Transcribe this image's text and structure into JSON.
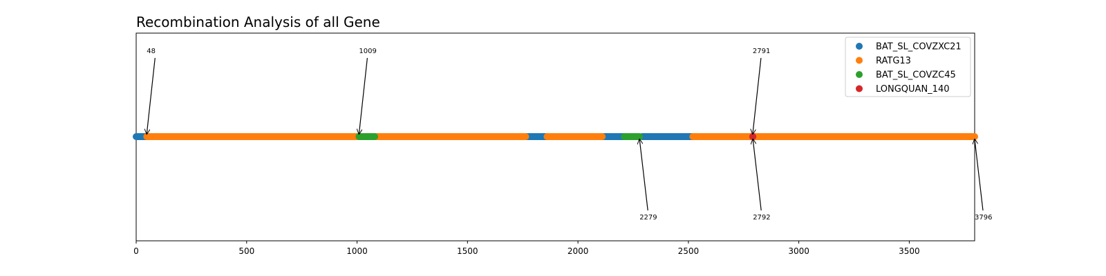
{
  "chart_data": {
    "type": "scatter",
    "title": "Recombination Analysis of all Gene",
    "xlabel": "",
    "ylabel": "",
    "xlim": [
      0,
      3796
    ],
    "xticks": [
      0,
      500,
      1000,
      1500,
      2000,
      2500,
      3000,
      3500
    ],
    "grid": false,
    "legend_placement": "top-right",
    "series": [
      {
        "name": "BAT_SL_COVZXC21",
        "color": "#1f77b4",
        "segments": [
          [
            0,
            48
          ],
          [
            1763,
            1860
          ],
          [
            2110,
            2210
          ],
          [
            2290,
            2520
          ]
        ]
      },
      {
        "name": "RATG13",
        "color": "#ff7f0e",
        "segments": [
          [
            48,
            1009
          ],
          [
            1080,
            1763
          ],
          [
            1860,
            2110
          ],
          [
            2520,
            2791
          ],
          [
            2792,
            3796
          ]
        ]
      },
      {
        "name": "BAT_SL_COVZC45",
        "color": "#2ca02c",
        "segments": [
          [
            1009,
            1080
          ],
          [
            2210,
            2279
          ]
        ]
      },
      {
        "name": "LONGQUAN_140",
        "color": "#d62728",
        "segments": [
          [
            2791,
            2792
          ]
        ]
      }
    ],
    "annotations": [
      {
        "label": "48",
        "x": 48,
        "side": "above"
      },
      {
        "label": "1009",
        "x": 1009,
        "side": "above"
      },
      {
        "label": "2791",
        "x": 2791,
        "side": "above"
      },
      {
        "label": "2279",
        "x": 2279,
        "side": "below"
      },
      {
        "label": "2792",
        "x": 2792,
        "side": "below"
      },
      {
        "label": "3796",
        "x": 3796,
        "side": "below"
      }
    ]
  }
}
